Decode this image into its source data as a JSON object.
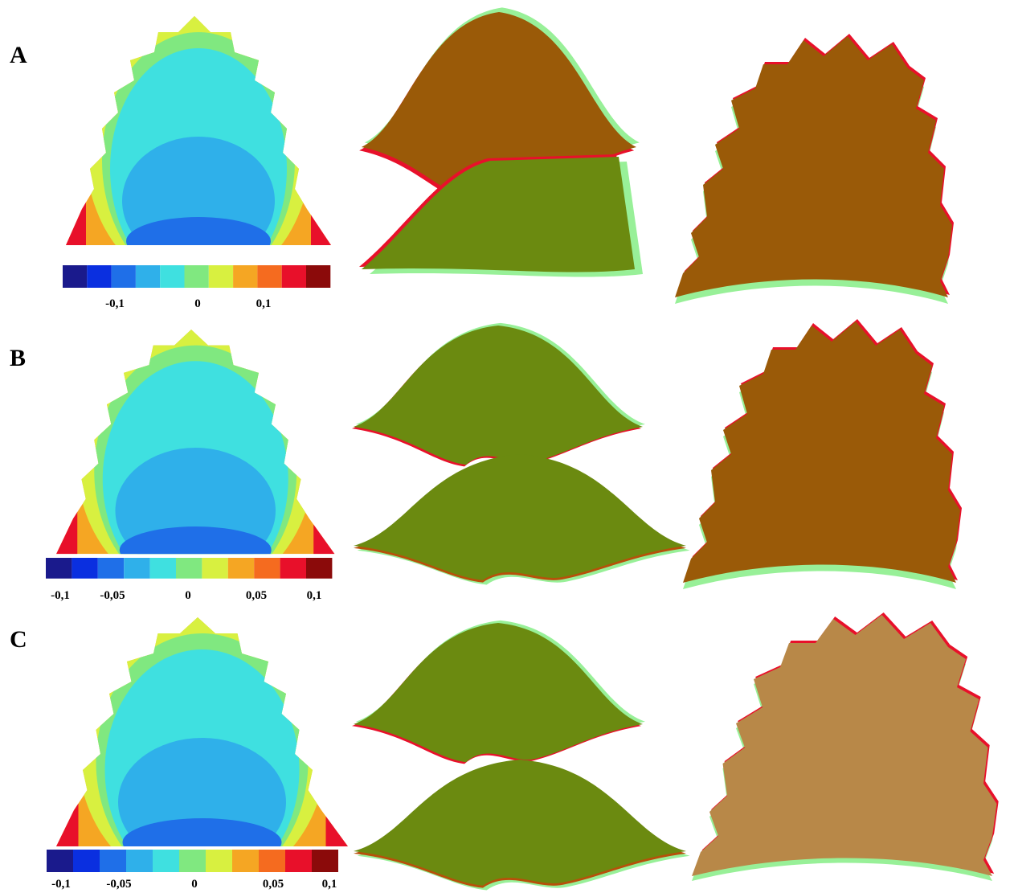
{
  "panels": [
    {
      "label": "A",
      "colorbar_ticks": [
        "-0,1",
        "0",
        "0,1"
      ]
    },
    {
      "label": "B",
      "colorbar_ticks": [
        "-0,1",
        "-0,05",
        "0",
        "0,05",
        "0,1"
      ]
    },
    {
      "label": "C",
      "colorbar_ticks": [
        "-0,1",
        "-0,05",
        "0",
        "0,05",
        "0,1"
      ]
    }
  ]
}
